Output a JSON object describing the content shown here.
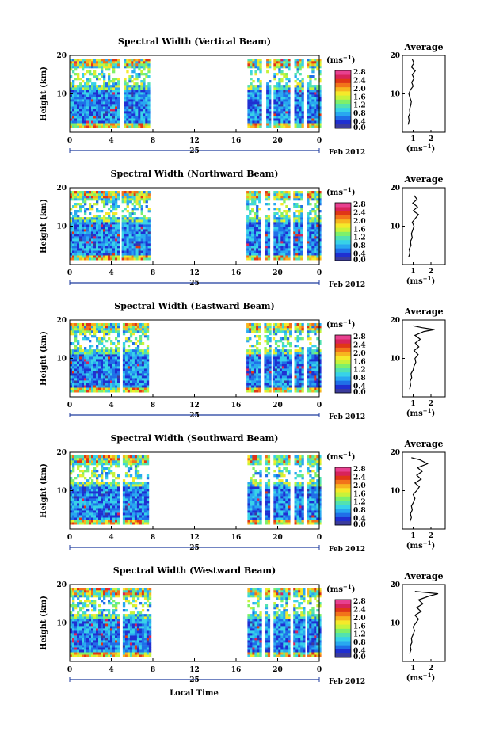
{
  "footer": {
    "xlabel": "Local Time"
  },
  "colorbar": {
    "unit_label": "(ms",
    "unit_exp": "−1",
    "tick_labels": [
      "2.8",
      "2.4",
      "2.0",
      "1.6",
      "1.2",
      "0.8",
      "0.4",
      "0.0"
    ],
    "tick_values": [
      2.8,
      2.4,
      2.0,
      1.6,
      1.2,
      0.8,
      0.4,
      0.0
    ],
    "colors": [
      "#3b3b9c",
      "#1f2fd1",
      "#1f6fe8",
      "#28a8f0",
      "#37d2e8",
      "#52e2b0",
      "#7ef06a",
      "#c8f23a",
      "#f5e92a",
      "#f7b51f",
      "#f2731a",
      "#e03616",
      "#d8235a",
      "#e8408f"
    ]
  },
  "chart_data": [
    {
      "type": "heatmap",
      "title": "Spectral Width (Vertical Beam)",
      "ylabel": "Height (km)",
      "x_ticks": [
        "0",
        "4",
        "8",
        "12",
        "16",
        "20",
        "0"
      ],
      "x_values": [
        0,
        4,
        8,
        12,
        16,
        20,
        24
      ],
      "x_date_label": "25",
      "date_suffix": "Feb 2012",
      "y_ticks": [
        "20",
        "10"
      ],
      "y_values": [
        20,
        10
      ],
      "xlim": [
        0,
        24
      ],
      "ylim": [
        0,
        20
      ],
      "data_intervals_hours": [
        [
          0,
          4.8
        ],
        [
          5.2,
          7.6
        ],
        [
          17.1,
          18.4
        ],
        [
          18.9,
          19.3
        ],
        [
          19.6,
          21.2
        ],
        [
          21.6,
          22.5
        ],
        [
          22.8,
          24
        ]
      ],
      "average_profile": {
        "title": "Average",
        "xlabel": "(ms",
        "xlabel_exp": "−1",
        "x_ticks": [
          "1",
          "2"
        ],
        "x_values": [
          1,
          2
        ],
        "y_ticks": [
          "20",
          "10"
        ],
        "y_values": [
          20,
          10
        ],
        "xlim": [
          0.4,
          2.8
        ],
        "ylim": [
          0,
          20
        ],
        "height": [
          2,
          3,
          4,
          5,
          6,
          7,
          8,
          9,
          10,
          11,
          12,
          13,
          14,
          15,
          16,
          17,
          18,
          19
        ],
        "width": [
          0.72,
          0.78,
          0.74,
          0.82,
          0.8,
          0.86,
          0.9,
          0.82,
          0.76,
          0.84,
          1.0,
          0.92,
          1.05,
          0.95,
          1.12,
          0.9,
          1.05,
          0.95
        ]
      }
    },
    {
      "type": "heatmap",
      "title": "Spectral Width (Northward Beam)",
      "ylabel": "Height (km)",
      "x_ticks": [
        "0",
        "4",
        "8",
        "12",
        "16",
        "20",
        "0"
      ],
      "x_values": [
        0,
        4,
        8,
        12,
        16,
        20,
        24
      ],
      "x_date_label": "25",
      "date_suffix": "Feb 2012",
      "y_ticks": [
        "20",
        "10"
      ],
      "y_values": [
        20,
        10
      ],
      "xlim": [
        0,
        24
      ],
      "ylim": [
        0,
        20
      ],
      "data_intervals_hours": [
        [
          0,
          4.6
        ],
        [
          5.0,
          7.7
        ],
        [
          17.0,
          18.3
        ],
        [
          18.8,
          19.2
        ],
        [
          19.6,
          21.1
        ],
        [
          21.5,
          22.4
        ],
        [
          22.8,
          24
        ]
      ],
      "average_profile": {
        "title": "Average",
        "xlabel": "(ms",
        "xlabel_exp": "−1",
        "x_ticks": [
          "1",
          "2"
        ],
        "x_values": [
          1,
          2
        ],
        "y_ticks": [
          "20",
          "10"
        ],
        "y_values": [
          20,
          10
        ],
        "xlim": [
          0.4,
          2.8
        ],
        "ylim": [
          0,
          20
        ],
        "height": [
          2,
          3,
          4,
          5,
          6,
          7,
          8,
          9,
          10,
          11,
          12,
          13,
          14,
          15,
          16,
          17,
          18
        ],
        "width": [
          0.75,
          0.82,
          0.78,
          0.88,
          0.85,
          0.95,
          0.9,
          0.98,
          1.05,
          0.95,
          1.12,
          1.3,
          1.0,
          1.25,
          0.98,
          1.22,
          1.05
        ]
      }
    },
    {
      "type": "heatmap",
      "title": "Spectral Width (Eastward Beam)",
      "ylabel": "Height (km)",
      "x_ticks": [
        "0",
        "4",
        "8",
        "12",
        "16",
        "20",
        "0"
      ],
      "x_values": [
        0,
        4,
        8,
        12,
        16,
        20,
        24
      ],
      "x_date_label": "25",
      "date_suffix": "Feb 2012",
      "y_ticks": [
        "20",
        "10"
      ],
      "y_values": [
        20,
        10
      ],
      "xlim": [
        0,
        24
      ],
      "ylim": [
        0,
        20
      ],
      "data_intervals_hours": [
        [
          0,
          4.8
        ],
        [
          5.1,
          7.6
        ],
        [
          17.0,
          18.3
        ],
        [
          18.7,
          19.2
        ],
        [
          19.5,
          21.2
        ],
        [
          21.6,
          22.5
        ],
        [
          22.8,
          24
        ]
      ],
      "average_profile": {
        "title": "Average",
        "xlabel": "(ms",
        "xlabel_exp": "−1",
        "x_ticks": [
          "1",
          "2"
        ],
        "x_values": [
          1,
          2
        ],
        "y_ticks": [
          "20",
          "10"
        ],
        "y_values": [
          20,
          10
        ],
        "xlim": [
          0.4,
          2.8
        ],
        "ylim": [
          0,
          20
        ],
        "height": [
          2,
          3,
          4,
          5,
          6,
          7,
          8,
          9,
          10,
          11,
          12,
          13,
          14,
          15,
          16,
          17,
          17.5,
          18,
          18.5
        ],
        "width": [
          0.8,
          0.86,
          0.82,
          0.92,
          0.88,
          1.0,
          1.05,
          1.15,
          1.1,
          1.28,
          1.05,
          1.32,
          1.12,
          1.4,
          1.1,
          1.6,
          2.2,
          1.5,
          1.0
        ]
      }
    },
    {
      "type": "heatmap",
      "title": "Spectral Width (Southward Beam)",
      "ylabel": "Height (km)",
      "x_ticks": [
        "0",
        "4",
        "8",
        "12",
        "16",
        "20",
        "0"
      ],
      "x_values": [
        0,
        4,
        8,
        12,
        16,
        20,
        24
      ],
      "x_date_label": "25",
      "date_suffix": "Feb 2012",
      "y_ticks": [
        "20",
        "10"
      ],
      "y_values": [
        20,
        10
      ],
      "xlim": [
        0,
        24
      ],
      "ylim": [
        0,
        20
      ],
      "data_intervals_hours": [
        [
          0,
          4.7
        ],
        [
          5.1,
          7.6
        ],
        [
          17.1,
          18.4
        ],
        [
          18.8,
          19.2
        ],
        [
          19.6,
          21.2
        ],
        [
          21.6,
          22.5
        ],
        [
          22.8,
          24
        ]
      ],
      "average_profile": {
        "title": "Average",
        "xlabel": "(ms",
        "xlabel_exp": "−1",
        "x_ticks": [
          "1",
          "2"
        ],
        "x_values": [
          1,
          2
        ],
        "y_ticks": [
          "20",
          "10"
        ],
        "y_values": [
          20,
          10
        ],
        "xlim": [
          0.4,
          2.8
        ],
        "ylim": [
          0,
          20
        ],
        "height": [
          2,
          3,
          4,
          5,
          6,
          7,
          8,
          9,
          10,
          11,
          12,
          13,
          14,
          15,
          16,
          17,
          18,
          18.6
        ],
        "width": [
          0.82,
          0.9,
          0.85,
          0.95,
          0.9,
          1.02,
          1.1,
          1.0,
          1.2,
          1.35,
          1.1,
          1.45,
          1.2,
          1.5,
          1.25,
          1.8,
          1.4,
          0.9
        ]
      }
    },
    {
      "type": "heatmap",
      "title": "Spectral Width (Westward Beam)",
      "ylabel": "Height (km)",
      "x_ticks": [
        "0",
        "4",
        "8",
        "12",
        "16",
        "20",
        "0"
      ],
      "x_values": [
        0,
        4,
        8,
        12,
        16,
        20,
        24
      ],
      "x_date_label": "25",
      "date_suffix": "Feb 2012",
      "y_ticks": [
        "20",
        "10"
      ],
      "y_values": [
        20,
        10
      ],
      "xlim": [
        0,
        24
      ],
      "ylim": [
        0,
        20
      ],
      "data_intervals_hours": [
        [
          0,
          4.8
        ],
        [
          5.1,
          7.7
        ],
        [
          17.1,
          18.4
        ],
        [
          18.8,
          19.2
        ],
        [
          19.6,
          21.1
        ],
        [
          21.5,
          22.5
        ],
        [
          22.8,
          24
        ]
      ],
      "average_profile": {
        "title": "Average",
        "xlabel": "(ms",
        "xlabel_exp": "−1",
        "x_ticks": [
          "1",
          "2"
        ],
        "x_values": [
          1,
          2
        ],
        "y_ticks": [
          "20",
          "10"
        ],
        "y_values": [
          20,
          10
        ],
        "xlim": [
          0.4,
          2.8
        ],
        "ylim": [
          0,
          20
        ],
        "height": [
          2,
          3,
          4,
          5,
          6,
          7,
          8,
          9,
          10,
          11,
          12,
          13,
          14,
          15,
          16,
          17,
          17.6,
          18.2
        ],
        "width": [
          0.8,
          0.88,
          0.84,
          0.94,
          0.9,
          1.0,
          1.08,
          1.0,
          1.15,
          1.3,
          1.1,
          1.45,
          1.2,
          1.55,
          1.3,
          1.9,
          2.4,
          1.1
        ]
      }
    }
  ]
}
